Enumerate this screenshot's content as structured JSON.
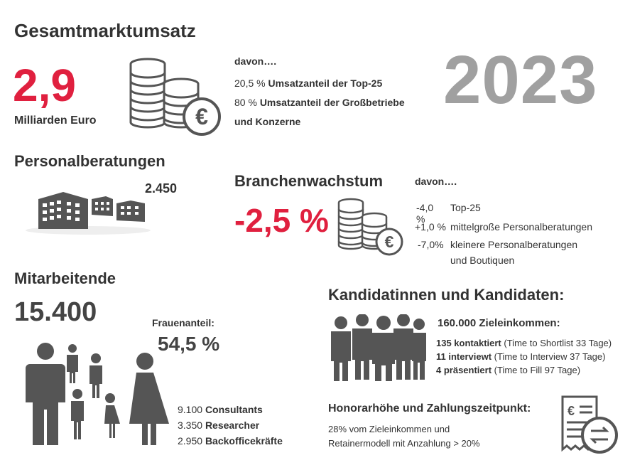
{
  "market": {
    "title": "Gesamtmarktumsatz",
    "value": "2,9",
    "unit": "Milliarden Euro",
    "davon": "davon….",
    "line1_pct": "20,5 %",
    "line1_text": "Umsatzanteil der Top-25",
    "line2_pct": "80 %",
    "line2_text": "Umsatzanteil der Großbetriebe",
    "line3_text": "und Konzerne"
  },
  "year": "2023",
  "consultancies": {
    "title": "Personalberatungen",
    "count": "2.450"
  },
  "growth": {
    "title": "Branchenwachstum",
    "value": "-2,5 %",
    "davon": "davon….",
    "rows": [
      {
        "pct": "-4,0 %",
        "text": "Top-25"
      },
      {
        "pct": "+1,0 %",
        "text": "mittelgroße Personalberatungen"
      },
      {
        "pct": "-7,0%",
        "text": "kleinere Personalberatungen"
      }
    ],
    "row3_cont": "und Boutiquen"
  },
  "employees": {
    "title": "Mitarbeitende",
    "count": "15.400",
    "women_label": "Frauenanteil:",
    "women_value": "54,5 %",
    "roles": [
      {
        "num": "9.100",
        "label": "Consultants"
      },
      {
        "num": "3.350",
        "label": "Researcher"
      },
      {
        "num": "2.950",
        "label": "Backofficekräfte"
      }
    ]
  },
  "candidates": {
    "title": "Kandidatinnen und Kandidaten:",
    "salary": "160.000 Zieleinkommen:",
    "rows": [
      {
        "bold": "135 kontaktiert",
        "rest": "(Time to Shortlist 33 Tage)"
      },
      {
        "bold": "11 interviewt",
        "rest": "(Time to Interview 37 Tage)"
      },
      {
        "bold": "4 präsentiert",
        "rest": "(Time to Fill 97 Tage)"
      }
    ]
  },
  "fees": {
    "title": "Honorarhöhe und Zahlungszeitpunkt:",
    "line1": "28% vom Zieleinkommen und",
    "line2": "Retainermodell mit Anzahlung > 20%"
  },
  "colors": {
    "accent": "#e0203f",
    "icon": "#555555",
    "year": "#a0a0a0"
  }
}
